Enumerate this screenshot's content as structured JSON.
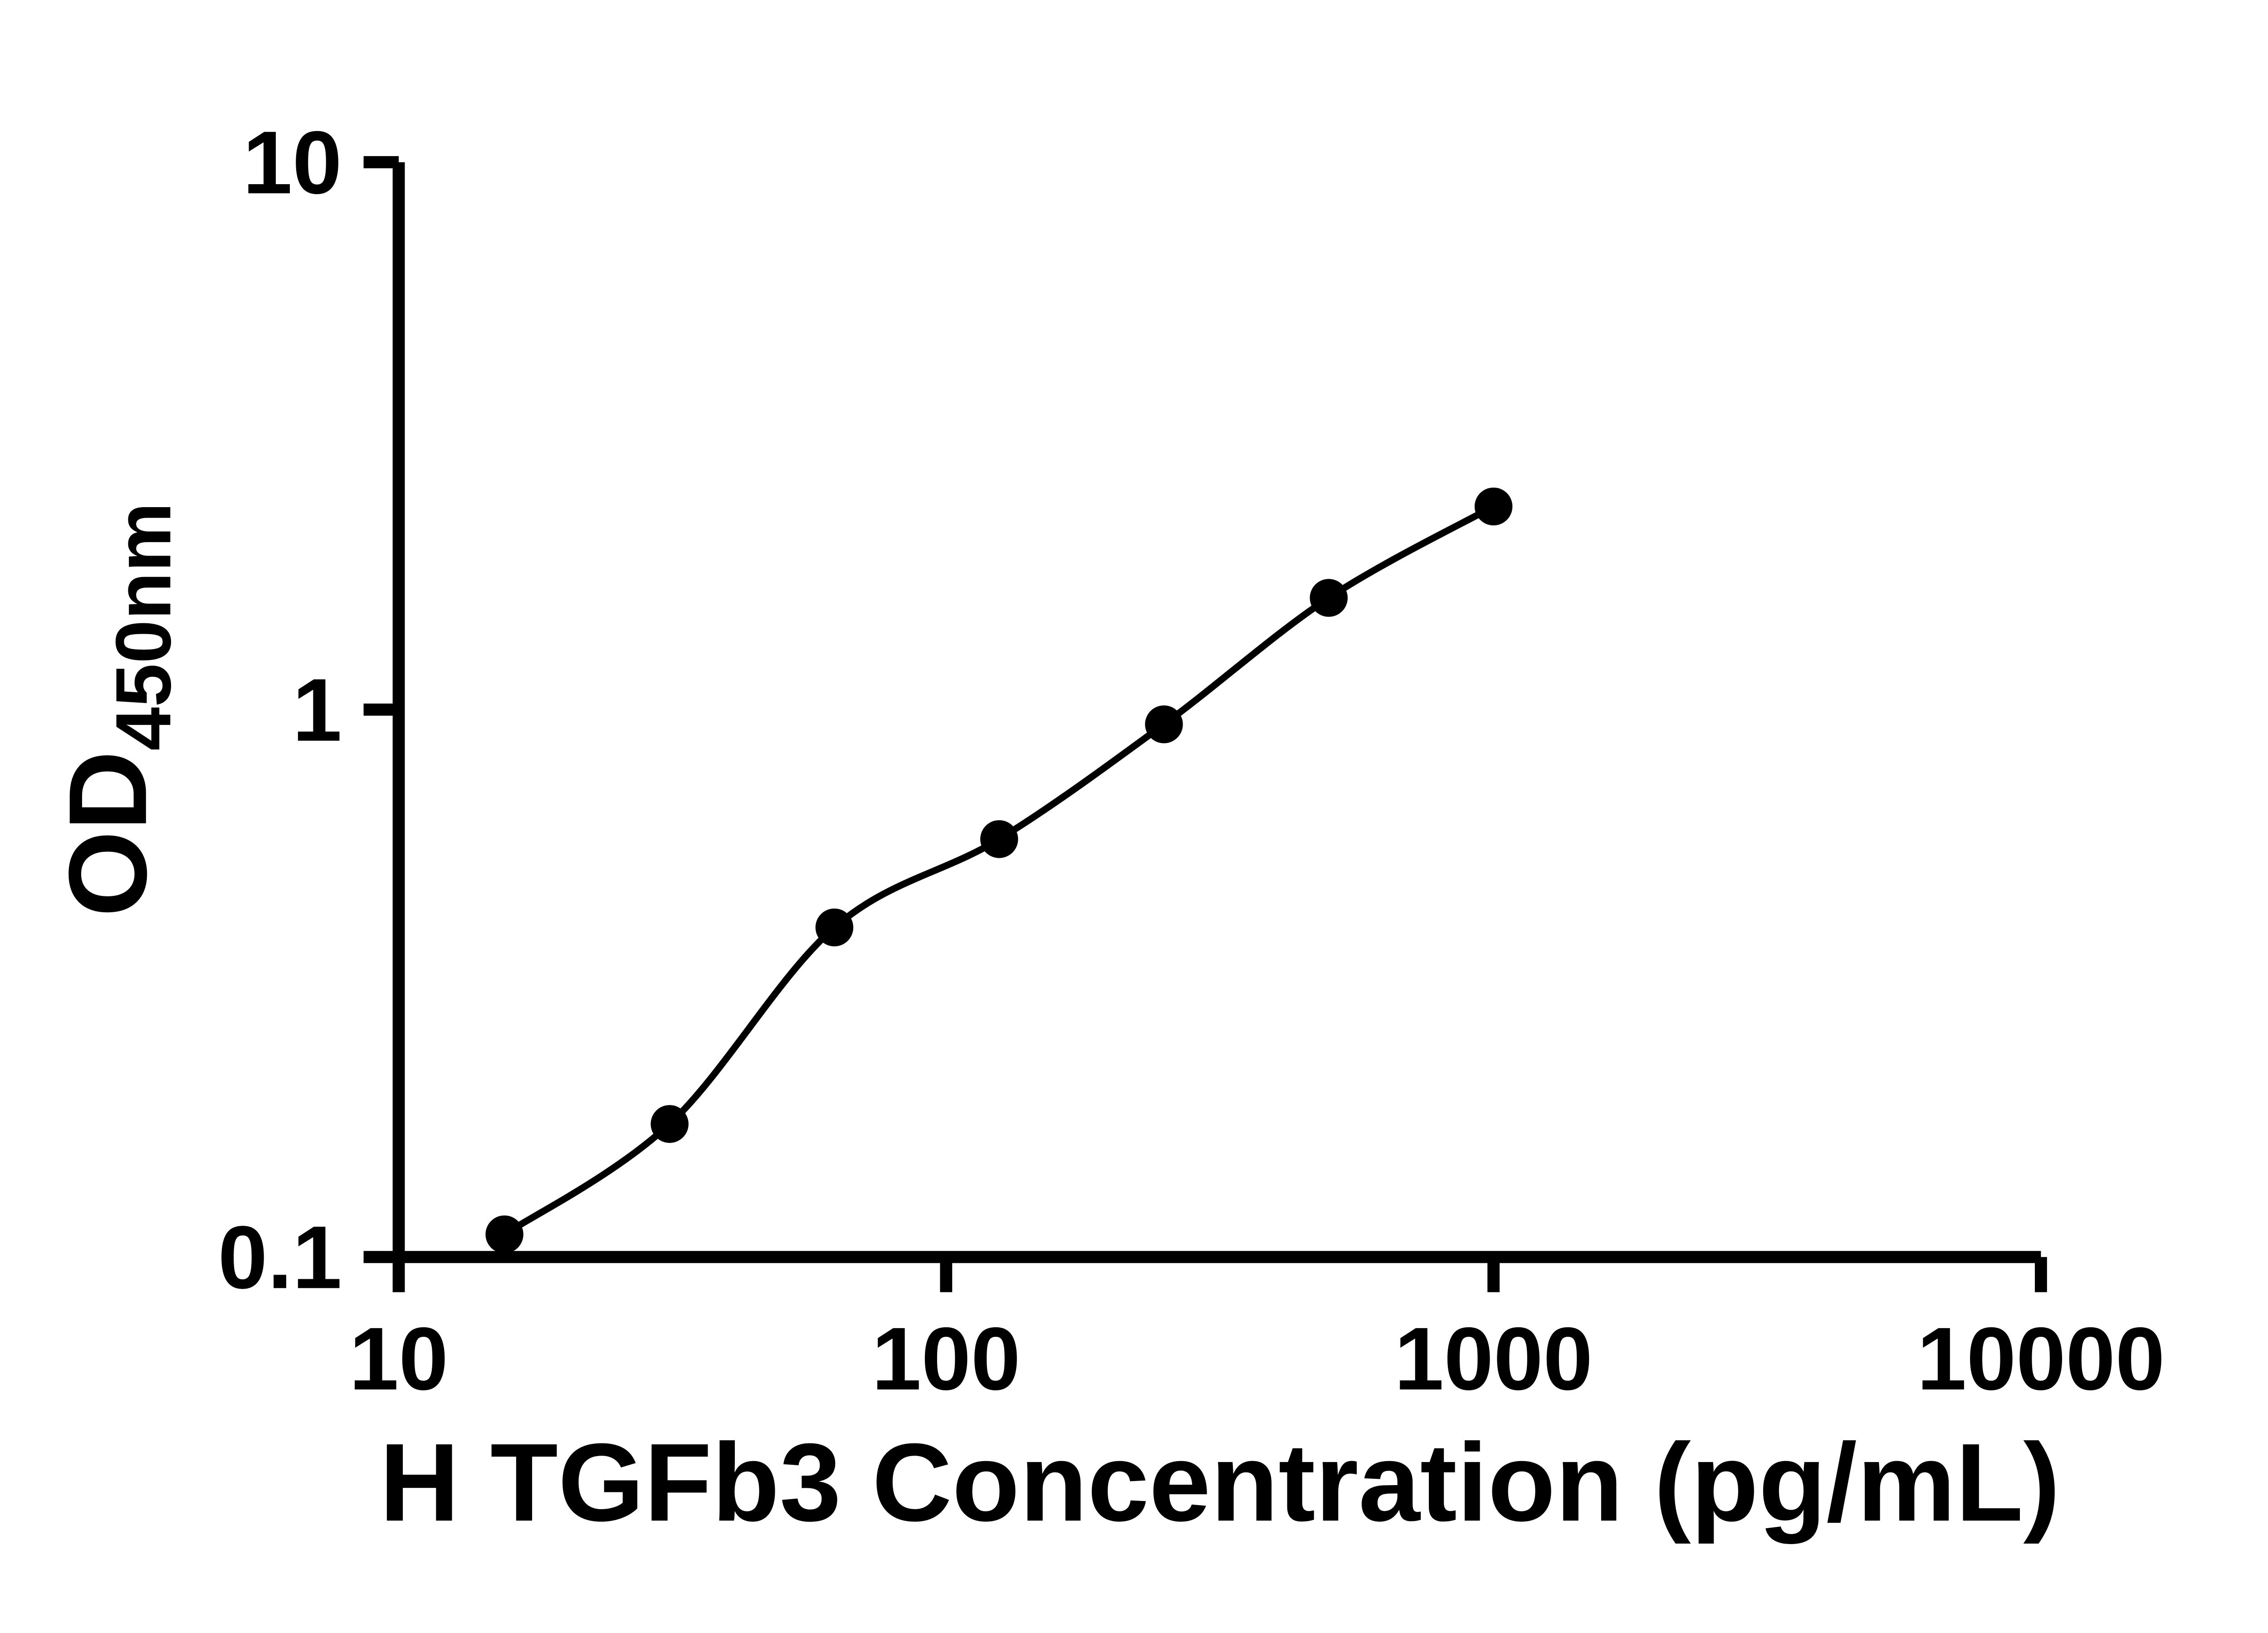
{
  "figure": {
    "background": "#ffffff"
  },
  "chart_data": {
    "type": "scatter",
    "title": "",
    "xlabel": "H TGFb3 Concentration (pg/mL)",
    "ylabel_base": "OD",
    "ylabel_sub": "450nm",
    "xscale": "log",
    "yscale": "log",
    "xlim": [
      10,
      10000
    ],
    "ylim": [
      0.1,
      10
    ],
    "x_ticks": [
      {
        "value": 10,
        "label": "10"
      },
      {
        "value": 100,
        "label": "100"
      },
      {
        "value": 1000,
        "label": "1000"
      },
      {
        "value": 10000,
        "label": "10000"
      }
    ],
    "y_ticks": [
      {
        "value": 0.1,
        "label": "0.1"
      },
      {
        "value": 1,
        "label": "1"
      },
      {
        "value": 10,
        "label": "10"
      }
    ],
    "points": [
      {
        "x": 15.6,
        "y": 0.11
      },
      {
        "x": 31.25,
        "y": 0.175
      },
      {
        "x": 62.5,
        "y": 0.4
      },
      {
        "x": 125,
        "y": 0.58
      },
      {
        "x": 250,
        "y": 0.94
      },
      {
        "x": 500,
        "y": 1.6
      },
      {
        "x": 1000,
        "y": 2.35
      }
    ],
    "curve": "smooth fit through points",
    "grid": false,
    "legend": "none",
    "marker_color": "#000000",
    "line_color": "#000000",
    "axis_color": "#000000"
  }
}
